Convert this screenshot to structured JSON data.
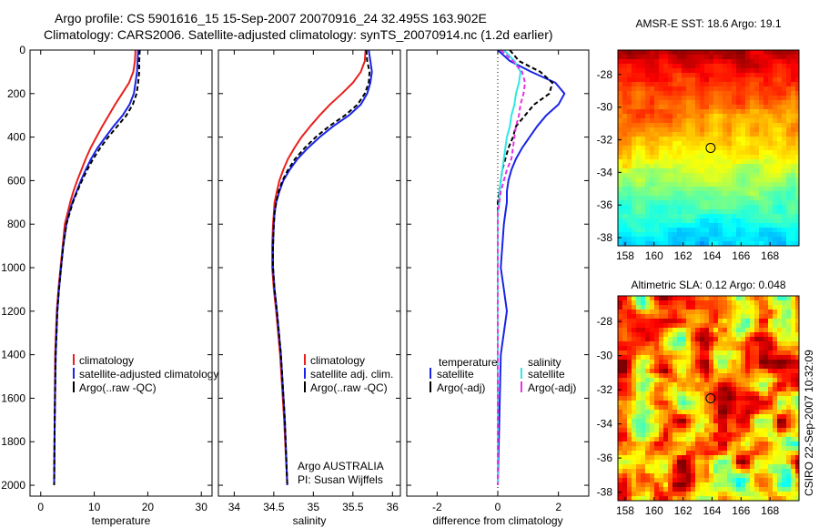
{
  "title_line1": "Argo profile: CS 5901616_15 15-Sep-2007 20070916_24 32.495S 163.902E",
  "title_line2": "Climatology: CARS2006. Satellite-adjusted climatology: synTS_20070914.nc (1.2d earlier)",
  "side_stamp": "CSIRO 22-Sep-2007 10:32:09",
  "credit": {
    "line1": "Argo AUSTRALIA",
    "line2": "PI: Susan Wijffels"
  },
  "colors": {
    "climatology": "#e8201c",
    "satellite": "#1a24e6",
    "argo": "#000000",
    "sal_satellite": "#33e6e6",
    "sal_argo": "#e633e6"
  },
  "chart_data": [
    {
      "type": "line",
      "xlabel": "temperature",
      "xlim": [
        -2,
        32
      ],
      "xticks": [
        0,
        10,
        20,
        30
      ],
      "ylim": [
        0,
        2050
      ],
      "yreversed": true,
      "yticks": [
        0,
        200,
        400,
        600,
        800,
        1000,
        1200,
        1400,
        1600,
        1800,
        2000
      ],
      "legend": [
        "climatology",
        "satellite-adjusted climatology",
        "Argo(..raw -QC)"
      ],
      "series": [
        {
          "name": "climatology",
          "color": "climatology",
          "dash": "",
          "x": [
            17.7,
            17.6,
            17.3,
            16.5,
            15.2,
            13.9,
            12.7,
            11.5,
            10.4,
            9.3,
            8.4,
            7.6,
            6.8,
            6.1,
            5.5,
            5.0,
            4.5,
            4.1,
            3.7,
            3.3,
            3.0,
            2.7,
            2.6,
            2.5
          ],
          "y": [
            0,
            50,
            100,
            150,
            200,
            250,
            300,
            350,
            400,
            450,
            500,
            550,
            600,
            650,
            700,
            750,
            800,
            900,
            1000,
            1100,
            1200,
            1400,
            1700,
            2000
          ]
        },
        {
          "name": "satellite-adjusted climatology",
          "color": "satellite",
          "dash": "",
          "x": [
            18.2,
            18.1,
            18.0,
            17.7,
            17.4,
            16.6,
            15.3,
            13.6,
            12.1,
            10.6,
            9.4,
            8.4,
            7.5,
            6.7,
            5.9,
            5.3,
            4.8,
            4.2,
            3.8,
            3.4,
            3.1,
            2.8,
            2.6,
            2.5
          ],
          "y": [
            0,
            50,
            100,
            150,
            200,
            250,
            300,
            350,
            400,
            450,
            500,
            550,
            600,
            650,
            700,
            750,
            800,
            900,
            1000,
            1100,
            1200,
            1400,
            1700,
            2000
          ]
        },
        {
          "name": "Argo(..raw -QC)",
          "color": "argo",
          "dash": "5,3",
          "x": [
            18.5,
            18.4,
            18.4,
            18.2,
            17.9,
            17.2,
            16.0,
            14.3,
            12.6,
            11.1,
            9.8,
            8.7,
            7.7,
            6.8,
            6.0,
            5.4,
            4.8,
            4.2,
            3.8,
            3.4,
            3.1,
            2.8,
            2.6,
            2.5
          ],
          "y": [
            0,
            50,
            100,
            150,
            200,
            250,
            300,
            350,
            400,
            450,
            500,
            550,
            600,
            650,
            700,
            750,
            800,
            900,
            1000,
            1100,
            1200,
            1400,
            1700,
            2000
          ]
        }
      ]
    },
    {
      "type": "line",
      "xlabel": "salinity",
      "xlim": [
        33.8,
        36.1
      ],
      "xticks": [
        34,
        34.5,
        35,
        35.5,
        36
      ],
      "ylim": [
        0,
        2050
      ],
      "yreversed": true,
      "legend": [
        "climatology",
        "satellite adj. clim.",
        "Argo(..raw -QC)"
      ],
      "series": [
        {
          "name": "climatology",
          "color": "climatology",
          "dash": "",
          "x": [
            35.66,
            35.65,
            35.6,
            35.5,
            35.36,
            35.21,
            35.08,
            34.96,
            34.85,
            34.76,
            34.68,
            34.62,
            34.57,
            34.54,
            34.51,
            34.5,
            34.49,
            34.48,
            34.48,
            34.5,
            34.53,
            34.58,
            34.63,
            34.67
          ],
          "y": [
            0,
            50,
            100,
            150,
            200,
            250,
            300,
            350,
            400,
            450,
            500,
            550,
            600,
            650,
            700,
            750,
            800,
            900,
            1000,
            1100,
            1200,
            1400,
            1700,
            2000
          ]
        },
        {
          "name": "satellite adj. clim.",
          "color": "satellite",
          "dash": "",
          "x": [
            35.7,
            35.72,
            35.74,
            35.72,
            35.68,
            35.6,
            35.45,
            35.25,
            35.08,
            34.93,
            34.8,
            34.7,
            34.62,
            34.57,
            34.53,
            34.51,
            34.5,
            34.49,
            34.49,
            34.51,
            34.54,
            34.59,
            34.64,
            34.67
          ],
          "y": [
            0,
            50,
            100,
            150,
            200,
            250,
            300,
            350,
            400,
            450,
            500,
            550,
            600,
            650,
            700,
            750,
            800,
            900,
            1000,
            1100,
            1200,
            1400,
            1700,
            2000
          ]
        },
        {
          "name": "Argo(..raw -QC)",
          "color": "argo",
          "dash": "5,3",
          "x": [
            35.67,
            35.68,
            35.71,
            35.7,
            35.65,
            35.56,
            35.4,
            35.2,
            35.03,
            34.89,
            34.77,
            34.68,
            34.61,
            34.56,
            34.53,
            34.51,
            34.5,
            34.49,
            34.49,
            34.51,
            34.54,
            34.59,
            34.64,
            34.67
          ],
          "y": [
            0,
            50,
            100,
            150,
            200,
            250,
            300,
            350,
            400,
            450,
            500,
            550,
            600,
            650,
            700,
            750,
            800,
            900,
            1000,
            1100,
            1200,
            1400,
            1700,
            2000
          ]
        }
      ]
    },
    {
      "type": "line",
      "xlabel": "difference from climatology",
      "xlim": [
        -3,
        3
      ],
      "xticks": [
        -2,
        0,
        2
      ],
      "ylim": [
        0,
        2050
      ],
      "yreversed": true,
      "legend_headers": [
        "temperature",
        "salinity"
      ],
      "legend": [
        "satellite",
        "Argo(-adj)",
        "satellite",
        "Argo(-adj)"
      ],
      "series": [
        {
          "name": "temperature satellite",
          "color": "satellite",
          "dash": "",
          "x": [
            0,
            0.4,
            1.1,
            1.9,
            2.2,
            2.0,
            1.6,
            1.3,
            1.05,
            0.8,
            0.6,
            0.45,
            0.35,
            0.3,
            0.3,
            0.25,
            0.2,
            0.15,
            0.1,
            0.2,
            0.3,
            0.1,
            0.05,
            0.0
          ],
          "y": [
            0,
            50,
            100,
            150,
            200,
            250,
            300,
            350,
            400,
            450,
            500,
            550,
            600,
            650,
            700,
            750,
            800,
            900,
            1000,
            1100,
            1200,
            1400,
            1700,
            2000
          ]
        },
        {
          "name": "temperature Argo(-adj)",
          "color": "argo",
          "dash": "5,3",
          "x": [
            0.4,
            0.7,
            1.4,
            1.8,
            1.7,
            1.2,
            0.9,
            0.6,
            0.5,
            0.35,
            0.25,
            0.15,
            0.1,
            0.05,
            0.0,
            0.0,
            0.0,
            0.0,
            0.0,
            0.0,
            0.0,
            0.0,
            0.0,
            0.0
          ],
          "y": [
            0,
            50,
            100,
            150,
            200,
            250,
            300,
            350,
            400,
            450,
            500,
            550,
            600,
            650,
            700,
            750,
            800,
            900,
            1000,
            1100,
            1200,
            1400,
            1700,
            2000
          ]
        },
        {
          "name": "salinity satellite",
          "color": "sal_satellite",
          "dash": "",
          "x": [
            0.2,
            0.55,
            0.75,
            0.7,
            0.6,
            0.55,
            0.45,
            0.4,
            0.3,
            0.25,
            0.2,
            0.15,
            0.1,
            0.05,
            0.05,
            0.0,
            0.0,
            0.0,
            0.0,
            0.0,
            0.0,
            0.0,
            0.0,
            0.0
          ],
          "y": [
            0,
            50,
            100,
            150,
            200,
            250,
            300,
            350,
            400,
            450,
            500,
            550,
            600,
            650,
            700,
            750,
            800,
            900,
            1000,
            1100,
            1200,
            1400,
            1700,
            2000
          ]
        },
        {
          "name": "salinity Argo(-adj)",
          "color": "sal_argo",
          "dash": "5,3",
          "x": [
            0.1,
            0.5,
            0.8,
            0.9,
            0.85,
            0.75,
            0.7,
            0.6,
            0.55,
            0.5,
            0.45,
            0.3,
            0.2,
            0.1,
            0.05,
            0.0,
            0.0,
            0.0,
            0.0,
            0.0,
            0.0,
            0.0,
            0.0,
            0.0
          ],
          "y": [
            0,
            50,
            100,
            150,
            200,
            250,
            300,
            350,
            400,
            450,
            500,
            550,
            600,
            650,
            700,
            750,
            800,
            900,
            1000,
            1100,
            1200,
            1400,
            1700,
            2000
          ]
        }
      ]
    },
    {
      "type": "heatmap",
      "title": "AMSR-E SST: 18.6 Argo: 19.1",
      "xlim": [
        157.5,
        170
      ],
      "ylim": [
        -38.5,
        -26.5
      ],
      "xticks": [
        158,
        160,
        162,
        164,
        166,
        168
      ],
      "yticks": [
        -28,
        -30,
        -32,
        -34,
        -36,
        -38
      ],
      "marker": {
        "lon": 163.9,
        "lat": -32.5
      }
    },
    {
      "type": "heatmap",
      "title": "Altimetric SLA: 0.12 Argo: 0.048",
      "xlim": [
        157.5,
        170
      ],
      "ylim": [
        -38.5,
        -26.5
      ],
      "xticks": [
        158,
        160,
        162,
        164,
        166,
        168
      ],
      "yticks": [
        -28,
        -30,
        -32,
        -34,
        -36,
        -38
      ],
      "marker": {
        "lon": 163.9,
        "lat": -32.5
      }
    }
  ]
}
